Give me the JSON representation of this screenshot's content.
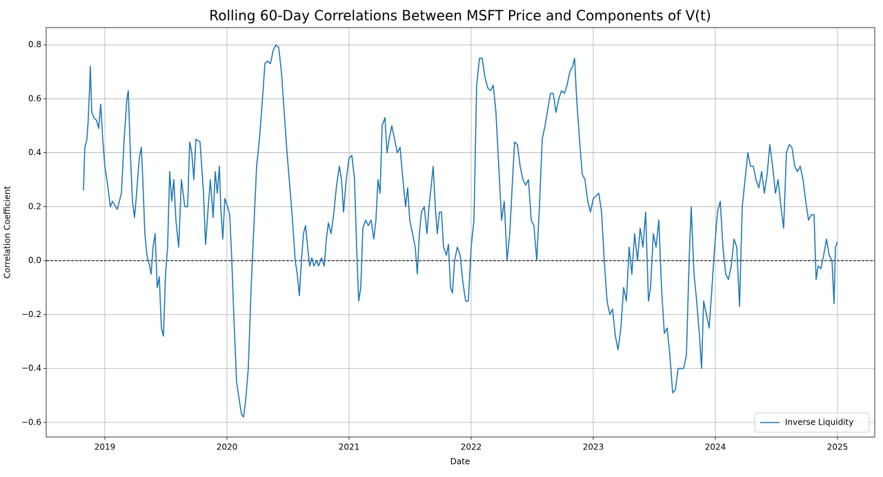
{
  "chart_data": {
    "type": "line",
    "title": "Rolling 60-Day Correlations Between MSFT Price and Components of V(t)",
    "x_label": "Date",
    "y_label": "Correlation Coefficient",
    "xlim": [
      2018.52,
      2025.305
    ],
    "ylim": [
      -0.654,
      0.864
    ],
    "xticks": [
      2019,
      2020,
      2021,
      2022,
      2023,
      2024,
      2025
    ],
    "yticks": [
      {
        "value": -0.6,
        "label": "−0.6"
      },
      {
        "value": -0.4,
        "label": "−0.4"
      },
      {
        "value": -0.2,
        "label": "−0.2"
      },
      {
        "value": 0,
        "label": "0.0"
      },
      0.2,
      0.4,
      0.6,
      0.8
    ],
    "grid": true,
    "legend": "lower right",
    "hlines": [
      {
        "value": 0,
        "color": "#000000",
        "style": "dashed"
      }
    ],
    "x": [
      2018.825,
      2018.836,
      2018.853,
      2018.864,
      2018.876,
      2018.881,
      2018.893,
      2018.91,
      2018.932,
      2018.949,
      2018.966,
      2018.983,
      2019.0,
      2019.023,
      2019.045,
      2019.062,
      2019.102,
      2019.136,
      2019.158,
      2019.181,
      2019.192,
      2019.209,
      2019.226,
      2019.243,
      2019.26,
      2019.282,
      2019.299,
      2019.311,
      2019.328,
      2019.345,
      2019.367,
      2019.379,
      2019.395,
      2019.412,
      2019.429,
      2019.446,
      2019.463,
      2019.48,
      2019.497,
      2019.514,
      2019.531,
      2019.548,
      2019.565,
      2019.582,
      2019.605,
      2019.627,
      2019.655,
      2019.678,
      2019.695,
      2019.712,
      2019.729,
      2019.746,
      2019.78,
      2019.808,
      2019.825,
      2019.847,
      2019.864,
      2019.887,
      2019.904,
      2019.921,
      2019.938,
      2019.949,
      2019.966,
      2019.983,
      2020.006,
      2020.023,
      2020.04,
      2020.056,
      2020.079,
      2020.102,
      2020.119,
      2020.136,
      2020.153,
      2020.175,
      2020.198,
      2020.22,
      2020.243,
      2020.266,
      2020.288,
      2020.311,
      2020.333,
      2020.356,
      2020.379,
      2020.401,
      2020.424,
      2020.446,
      2020.469,
      2020.492,
      2020.514,
      2020.537,
      2020.559,
      2020.576,
      2020.593,
      2020.61,
      2020.627,
      2020.644,
      2020.661,
      2020.678,
      2020.695,
      2020.712,
      2020.734,
      2020.751,
      2020.774,
      2020.797,
      2020.814,
      2020.831,
      2020.853,
      2020.876,
      2020.898,
      2020.921,
      2020.938,
      2020.955,
      2020.977,
      2021.0,
      2021.023,
      2021.045,
      2021.062,
      2021.079,
      2021.096,
      2021.113,
      2021.136,
      2021.158,
      2021.181,
      2021.203,
      2021.22,
      2021.237,
      2021.254,
      2021.271,
      2021.294,
      2021.311,
      2021.328,
      2021.35,
      2021.373,
      2021.395,
      2021.418,
      2021.441,
      2021.463,
      2021.48,
      2021.497,
      2021.52,
      2021.542,
      2021.559,
      2021.576,
      2021.593,
      2021.616,
      2021.638,
      2021.655,
      2021.678,
      2021.689,
      2021.706,
      2021.723,
      2021.74,
      2021.757,
      2021.774,
      2021.797,
      2021.814,
      2021.831,
      2021.847,
      2021.864,
      2021.887,
      2021.91,
      2021.932,
      2021.955,
      2021.977,
      2022.0,
      2022.023,
      2022.045,
      2022.068,
      2022.09,
      2022.113,
      2022.136,
      2022.158,
      2022.181,
      2022.203,
      2022.226,
      2022.249,
      2022.271,
      2022.294,
      2022.316,
      2022.339,
      2022.356,
      2022.379,
      2022.401,
      2022.424,
      2022.446,
      2022.469,
      2022.492,
      2022.514,
      2022.537,
      2022.559,
      2022.582,
      2022.605,
      2022.627,
      2022.65,
      2022.672,
      2022.695,
      2022.718,
      2022.74,
      2022.763,
      2022.785,
      2022.808,
      2022.831,
      2022.847,
      2022.864,
      2022.887,
      2022.91,
      2022.932,
      2022.955,
      2022.977,
      2023.0,
      2023.023,
      2023.045,
      2023.068,
      2023.09,
      2023.113,
      2023.136,
      2023.158,
      2023.181,
      2023.203,
      2023.226,
      2023.249,
      2023.271,
      2023.294,
      2023.316,
      2023.339,
      2023.362,
      2023.384,
      2023.407,
      2023.429,
      2023.452,
      2023.469,
      2023.492,
      2023.514,
      2023.537,
      2023.559,
      2023.582,
      2023.605,
      2023.627,
      2023.65,
      2023.672,
      2023.695,
      2023.718,
      2023.74,
      2023.763,
      2023.785,
      2023.802,
      2023.825,
      2023.847,
      2023.87,
      2023.887,
      2023.904,
      2023.927,
      2023.949,
      2023.972,
      2023.994,
      2024.017,
      2024.04,
      2024.062,
      2024.085,
      2024.107,
      2024.13,
      2024.153,
      2024.175,
      2024.198,
      2024.22,
      2024.243,
      2024.266,
      2024.288,
      2024.311,
      2024.333,
      2024.356,
      2024.379,
      2024.401,
      2024.424,
      2024.446,
      2024.469,
      2024.492,
      2024.514,
      2024.537,
      2024.559,
      2024.582,
      2024.605,
      2024.627,
      2024.65,
      2024.672,
      2024.695,
      2024.718,
      2024.74,
      2024.763,
      2024.785,
      2024.808,
      2024.825,
      2024.842,
      2024.864,
      2024.887,
      2024.91,
      2024.932,
      2024.955,
      2024.972,
      2024.983,
      2025.0
    ],
    "series": [
      {
        "name": "Inverse Liquidity",
        "color": "#1f77b4",
        "values": [
          0.26,
          0.42,
          0.45,
          0.52,
          0.65,
          0.72,
          0.55,
          0.53,
          0.52,
          0.49,
          0.58,
          0.45,
          0.35,
          0.28,
          0.2,
          0.22,
          0.19,
          0.25,
          0.45,
          0.6,
          0.63,
          0.4,
          0.22,
          0.16,
          0.25,
          0.38,
          0.42,
          0.3,
          0.1,
          0.02,
          -0.02,
          -0.05,
          0.05,
          0.1,
          -0.1,
          -0.06,
          -0.25,
          -0.28,
          -0.05,
          0.05,
          0.33,
          0.22,
          0.3,
          0.15,
          0.05,
          0.3,
          0.2,
          0.2,
          0.44,
          0.4,
          0.3,
          0.45,
          0.44,
          0.25,
          0.06,
          0.2,
          0.3,
          0.16,
          0.33,
          0.25,
          0.35,
          0.2,
          0.08,
          0.23,
          0.2,
          0.17,
          0.0,
          -0.2,
          -0.45,
          -0.52,
          -0.57,
          -0.58,
          -0.52,
          -0.4,
          -0.1,
          0.12,
          0.35,
          0.45,
          0.58,
          0.73,
          0.74,
          0.73,
          0.78,
          0.8,
          0.79,
          0.7,
          0.55,
          0.4,
          0.28,
          0.15,
          0.0,
          -0.05,
          -0.13,
          0.0,
          0.1,
          0.13,
          0.05,
          -0.02,
          0.01,
          -0.02,
          0.0,
          -0.02,
          0.01,
          -0.02,
          0.08,
          0.14,
          0.1,
          0.18,
          0.28,
          0.35,
          0.3,
          0.18,
          0.3,
          0.38,
          0.39,
          0.3,
          0.05,
          -0.15,
          -0.1,
          0.12,
          0.15,
          0.13,
          0.15,
          0.08,
          0.15,
          0.3,
          0.25,
          0.5,
          0.53,
          0.4,
          0.45,
          0.5,
          0.45,
          0.4,
          0.42,
          0.3,
          0.2,
          0.27,
          0.15,
          0.1,
          0.05,
          -0.05,
          0.1,
          0.18,
          0.2,
          0.1,
          0.2,
          0.3,
          0.35,
          0.2,
          0.1,
          0.18,
          0.18,
          0.05,
          0.02,
          0.06,
          -0.1,
          -0.12,
          0.0,
          0.05,
          0.02,
          -0.08,
          -0.15,
          -0.15,
          0.05,
          0.15,
          0.65,
          0.75,
          0.75,
          0.68,
          0.64,
          0.63,
          0.65,
          0.55,
          0.35,
          0.15,
          0.22,
          0.0,
          0.1,
          0.3,
          0.44,
          0.43,
          0.35,
          0.3,
          0.28,
          0.3,
          0.15,
          0.13,
          0.0,
          0.2,
          0.45,
          0.5,
          0.56,
          0.62,
          0.62,
          0.55,
          0.6,
          0.63,
          0.62,
          0.65,
          0.7,
          0.72,
          0.75,
          0.6,
          0.45,
          0.32,
          0.3,
          0.22,
          0.18,
          0.23,
          0.24,
          0.25,
          0.18,
          0.0,
          -0.15,
          -0.2,
          -0.18,
          -0.28,
          -0.33,
          -0.25,
          -0.1,
          -0.15,
          0.05,
          -0.05,
          0.1,
          0.0,
          0.12,
          0.05,
          0.18,
          -0.15,
          -0.1,
          0.1,
          0.05,
          0.15,
          -0.1,
          -0.27,
          -0.25,
          -0.35,
          -0.49,
          -0.48,
          -0.4,
          -0.4,
          -0.4,
          -0.35,
          0.0,
          0.2,
          -0.05,
          -0.15,
          -0.28,
          -0.4,
          -0.15,
          -0.2,
          -0.25,
          -0.1,
          0.05,
          0.18,
          0.22,
          0.05,
          -0.05,
          -0.07,
          -0.02,
          0.08,
          0.05,
          -0.17,
          0.2,
          0.3,
          0.4,
          0.35,
          0.35,
          0.3,
          0.27,
          0.33,
          0.25,
          0.32,
          0.43,
          0.35,
          0.25,
          0.3,
          0.2,
          0.12,
          0.4,
          0.43,
          0.42,
          0.35,
          0.33,
          0.35,
          0.3,
          0.22,
          0.15,
          0.17,
          0.17,
          -0.07,
          -0.02,
          -0.03,
          0.02,
          0.08,
          0.02,
          0.0,
          -0.16,
          0.05,
          0.07
        ]
      }
    ]
  }
}
